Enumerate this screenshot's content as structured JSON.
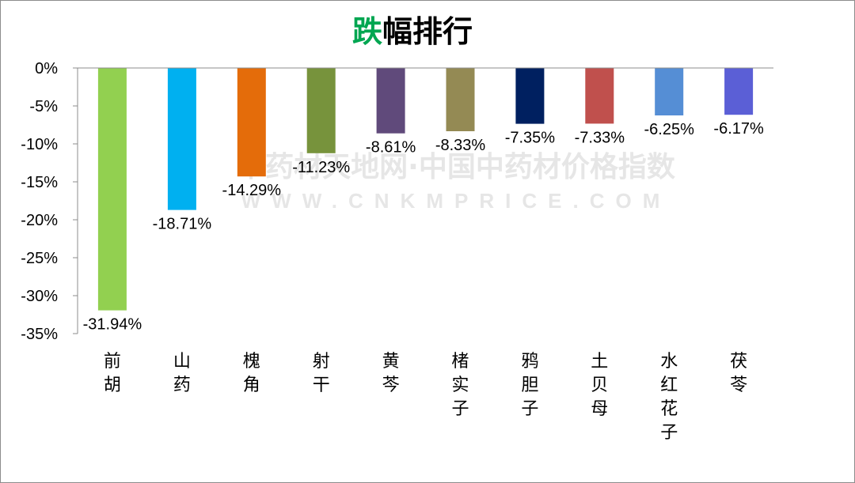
{
  "chart_data": {
    "type": "bar",
    "title_highlight": "跌",
    "title_rest": "幅排行",
    "highlight_color": "#00a651",
    "categories": [
      "前胡",
      "山药",
      "槐角",
      "射干",
      "黄芩",
      "楮实子",
      "鸦胆子",
      "土贝母",
      "水红花子",
      "茯苓"
    ],
    "values": [
      -31.94,
      -18.71,
      -14.29,
      -11.23,
      -8.61,
      -8.33,
      -7.35,
      -7.33,
      -6.25,
      -6.17
    ],
    "data_labels": [
      "-31.94%",
      "-18.71%",
      "-14.29%",
      "-11.23%",
      "-8.61%",
      "-8.33%",
      "-7.35%",
      "-7.33%",
      "-6.25%",
      "-6.17%"
    ],
    "colors": [
      "#92d050",
      "#00b0f0",
      "#e46c0a",
      "#77933c",
      "#604a7b",
      "#948a54",
      "#002060",
      "#c0504d",
      "#558ed5",
      "#5b5fd6"
    ],
    "ylim": [
      -35,
      0
    ],
    "yticks": [
      0,
      -5,
      -10,
      -15,
      -20,
      -25,
      -30,
      -35
    ],
    "ytick_labels": [
      "0%",
      "-5%",
      "-10%",
      "-15%",
      "-20%",
      "-25%",
      "-30%",
      "-35%"
    ],
    "grid": false,
    "legend": "none"
  },
  "watermark": {
    "cn": "中药材天地网·中国中药材价格指数",
    "en": "WWW.CNKMPRICE.COM",
    "color": "#e6e6e6"
  }
}
